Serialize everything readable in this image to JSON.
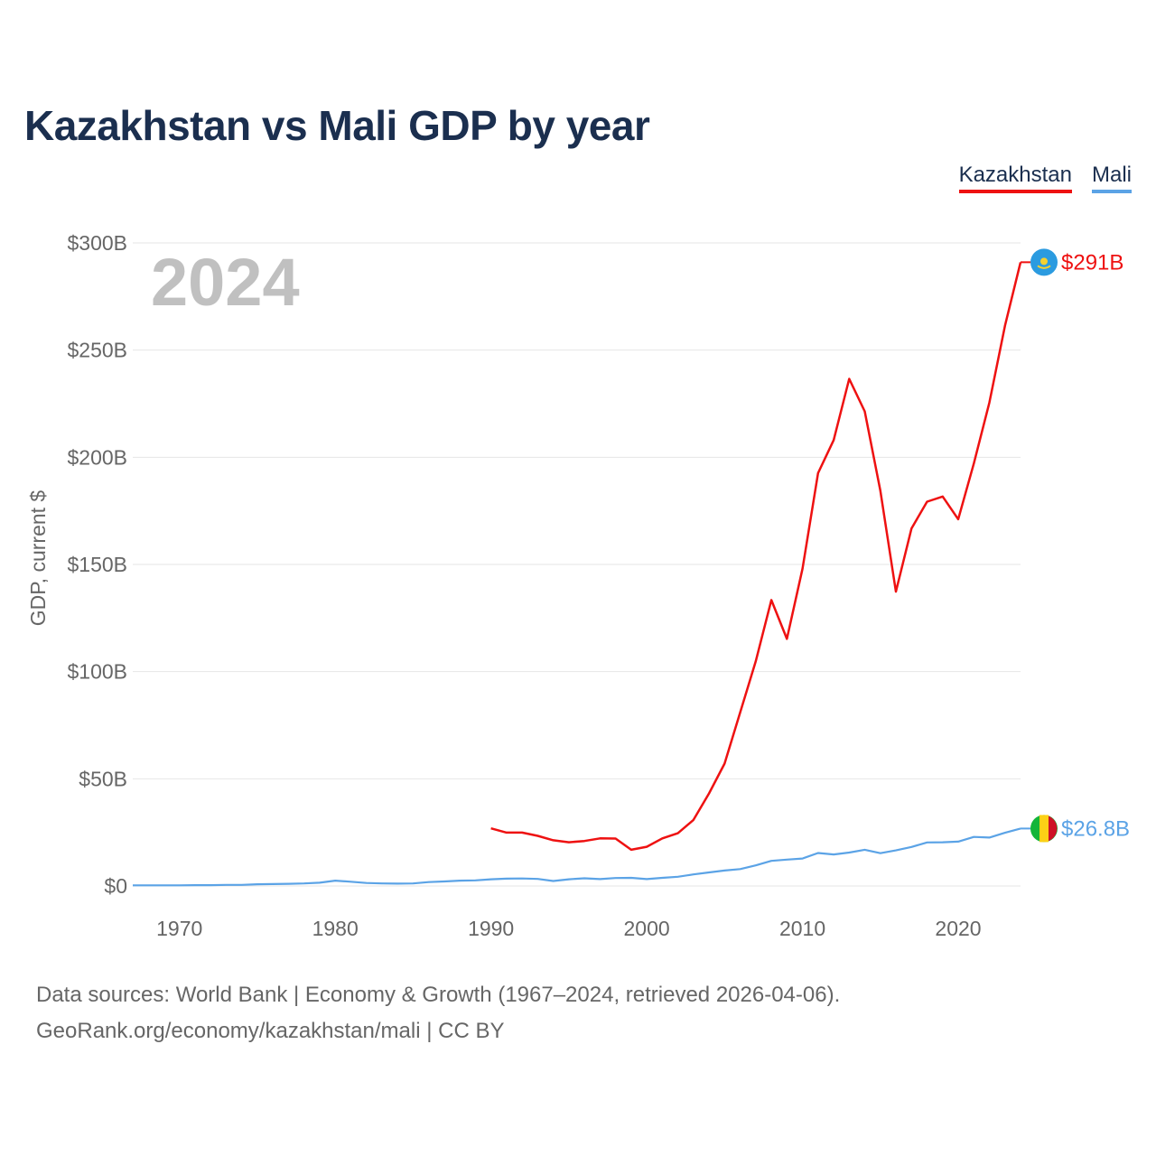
{
  "title": "Kazakhstan vs Mali GDP by year",
  "legend": {
    "kazakhstan": "Kazakhstan",
    "mali": "Mali"
  },
  "colors": {
    "kazakhstan": "#ee1111",
    "mali": "#5ba3e6",
    "title": "#1b2f4f",
    "axis_text": "#666666",
    "year_watermark": "#c0c0c0",
    "grid": "#e6e6e6"
  },
  "source": {
    "line1": "Data sources: World Bank | Economy & Growth (1967–2024, retrieved 2026-04-06).",
    "line2": "GeoRank.org/economy/kazakhstan/mali | CC BY"
  },
  "chart_data": {
    "type": "line",
    "title": "Kazakhstan vs Mali GDP by year",
    "year_label": "2024",
    "xlabel": "",
    "ylabel": "GDP, current $",
    "xlim": [
      1967,
      2024
    ],
    "ylim": [
      0,
      300
    ],
    "x_ticks": [
      1970,
      1980,
      1990,
      2000,
      2010,
      2020
    ],
    "x_tick_labels": [
      "1970",
      "1980",
      "1990",
      "2000",
      "2010",
      "2020"
    ],
    "y_ticks": [
      0,
      50,
      100,
      150,
      200,
      250,
      300
    ],
    "y_tick_labels": [
      "$0",
      "$50B",
      "$100B",
      "$150B",
      "$200B",
      "$250B",
      "$300B"
    ],
    "grid": true,
    "series": [
      {
        "name": "Kazakhstan",
        "end_label": "$291B",
        "flag_icon": "kazakhstan-flag-icon",
        "x": [
          1990,
          1991,
          1992,
          1993,
          1994,
          1995,
          1996,
          1997,
          1998,
          1999,
          2000,
          2001,
          2002,
          2003,
          2004,
          2005,
          2006,
          2007,
          2008,
          2009,
          2010,
          2011,
          2012,
          2013,
          2014,
          2015,
          2016,
          2017,
          2018,
          2019,
          2020,
          2021,
          2022,
          2023,
          2024
        ],
        "values": [
          26.9,
          24.9,
          24.9,
          23.4,
          21.3,
          20.4,
          21.0,
          22.2,
          22.1,
          16.9,
          18.3,
          22.2,
          24.6,
          30.8,
          43.2,
          57.1,
          81.0,
          104.8,
          133.4,
          115.3,
          148.0,
          192.6,
          208.0,
          236.6,
          221.4,
          184.4,
          137.3,
          166.8,
          179.3,
          181.7,
          171.1,
          197.1,
          225.5,
          261.4,
          291.0
        ]
      },
      {
        "name": "Mali",
        "end_label": "$26.8B",
        "flag_icon": "mali-flag-icon",
        "x": [
          1967,
          1968,
          1969,
          1970,
          1971,
          1972,
          1973,
          1974,
          1975,
          1976,
          1977,
          1978,
          1979,
          1980,
          1981,
          1982,
          1983,
          1984,
          1985,
          1986,
          1987,
          1988,
          1989,
          1990,
          1991,
          1992,
          1993,
          1994,
          1995,
          1996,
          1997,
          1998,
          1999,
          2000,
          2001,
          2002,
          2003,
          2004,
          2005,
          2006,
          2007,
          2008,
          2009,
          2010,
          2011,
          2012,
          2013,
          2014,
          2015,
          2016,
          2017,
          2018,
          2019,
          2020,
          2021,
          2022,
          2023,
          2024
        ],
        "values": [
          0.3,
          0.3,
          0.3,
          0.3,
          0.4,
          0.4,
          0.5,
          0.5,
          0.8,
          0.9,
          1.0,
          1.2,
          1.5,
          2.5,
          2.0,
          1.4,
          1.2,
          1.1,
          1.2,
          1.8,
          2.1,
          2.5,
          2.6,
          3.1,
          3.4,
          3.5,
          3.3,
          2.3,
          3.1,
          3.6,
          3.2,
          3.7,
          3.8,
          3.2,
          3.8,
          4.3,
          5.4,
          6.3,
          7.2,
          7.9,
          9.6,
          11.7,
          12.3,
          12.8,
          15.4,
          14.7,
          15.6,
          16.9,
          15.3,
          16.6,
          18.2,
          20.3,
          20.4,
          20.7,
          22.9,
          22.6,
          24.8,
          26.8
        ]
      }
    ]
  }
}
